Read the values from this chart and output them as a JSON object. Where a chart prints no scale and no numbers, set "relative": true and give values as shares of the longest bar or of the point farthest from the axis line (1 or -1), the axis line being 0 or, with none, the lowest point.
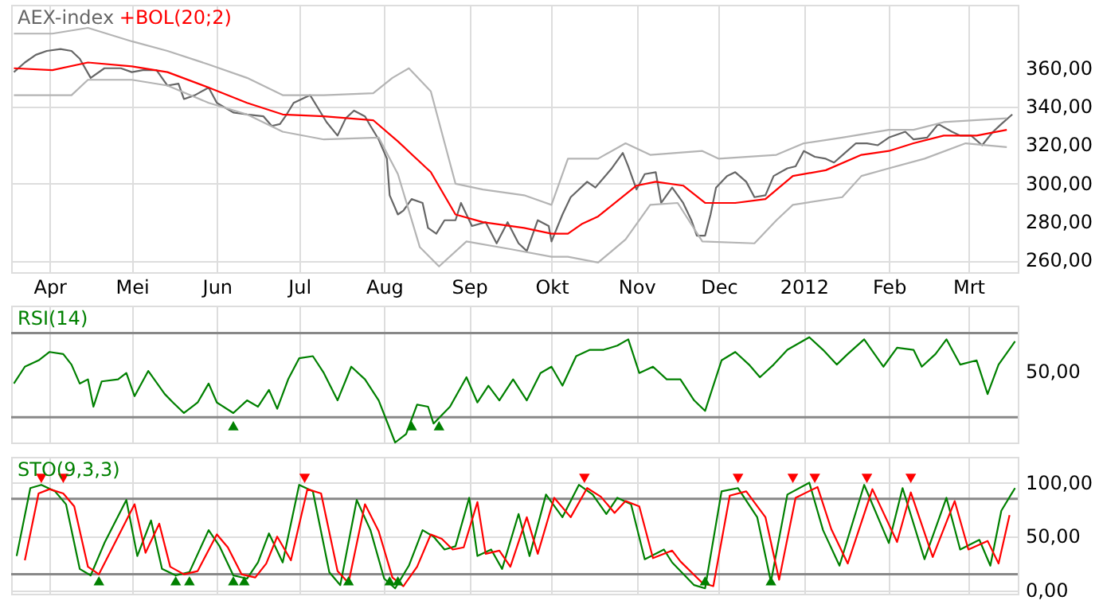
{
  "chart_data": [
    {
      "type": "line",
      "xlim": [
        "2011-03-18",
        "2012-03-19"
      ],
      "ylim": [
        254,
        393
      ],
      "xticks": [
        {
          "value": "2011-04-01",
          "label": "Apr"
        },
        {
          "value": "2011-05-01",
          "label": "Mei"
        },
        {
          "value": "2011-06-01",
          "label": "Jun"
        },
        {
          "value": "2011-07-01",
          "label": "Jul"
        },
        {
          "value": "2011-08-01",
          "label": "Aug"
        },
        {
          "value": "2011-09-01",
          "label": "Sep"
        },
        {
          "value": "2011-10-01",
          "label": "Okt"
        },
        {
          "value": "2011-11-01",
          "label": "Nov"
        },
        {
          "value": "2011-12-01",
          "label": "Dec"
        },
        {
          "value": "2012-01-01",
          "label": "2012"
        },
        {
          "value": "2012-02-01",
          "label": "Feb"
        },
        {
          "value": "2012-03-01",
          "label": "Mrt"
        }
      ],
      "yticks": [
        {
          "value": 260,
          "label": "260,00"
        },
        {
          "value": 280,
          "label": "280,00"
        },
        {
          "value": 300,
          "label": "300,00"
        },
        {
          "value": 320,
          "label": "320,00"
        },
        {
          "value": 340,
          "label": "340,00"
        },
        {
          "value": 360,
          "label": "360,00"
        }
      ],
      "grid": true,
      "legend": "top left",
      "line_style": "solid",
      "marker": "none",
      "series": [
        {
          "name": "AEX-index",
          "color": "#666666",
          "x": [
            "2011-03-19",
            "2011-03-23",
            "2011-03-27",
            "2011-03-31",
            "2011-04-05",
            "2011-04-09",
            "2011-04-12",
            "2011-04-16",
            "2011-04-21",
            "2011-04-27",
            "2011-05-01",
            "2011-05-05",
            "2011-05-10",
            "2011-05-14",
            "2011-05-18",
            "2011-05-20",
            "2011-05-24",
            "2011-05-29",
            "2011-06-01",
            "2011-06-07",
            "2011-06-12",
            "2011-06-18",
            "2011-06-21",
            "2011-06-24",
            "2011-06-26",
            "2011-06-29",
            "2011-07-05",
            "2011-07-08",
            "2011-07-11",
            "2011-07-15",
            "2011-07-18",
            "2011-07-21",
            "2011-07-25",
            "2011-07-27",
            "2011-07-30",
            "2011-08-02",
            "2011-08-03",
            "2011-08-06",
            "2011-08-08",
            "2011-08-11",
            "2011-08-15",
            "2011-08-17",
            "2011-08-20",
            "2011-08-23",
            "2011-08-27",
            "2011-08-29",
            "2011-09-02",
            "2011-09-07",
            "2011-09-11",
            "2011-09-15",
            "2011-09-19",
            "2011-09-22",
            "2011-09-26",
            "2011-09-30",
            "2011-10-01",
            "2011-10-05",
            "2011-10-08",
            "2011-10-14",
            "2011-10-17",
            "2011-10-23",
            "2011-10-27",
            "2011-10-29",
            "2011-11-01",
            "2011-11-04",
            "2011-11-08",
            "2011-11-10",
            "2011-11-14",
            "2011-11-18",
            "2011-11-21",
            "2011-11-23",
            "2011-11-26",
            "2011-11-28",
            "2011-11-30",
            "2011-12-04",
            "2011-12-07",
            "2011-12-11",
            "2011-12-14",
            "2011-12-18",
            "2011-12-21",
            "2011-12-26",
            "2011-12-29",
            "2012-01-01",
            "2012-01-05",
            "2012-01-09",
            "2012-01-12",
            "2012-01-16",
            "2012-01-20",
            "2012-01-24",
            "2012-01-28",
            "2012-02-01",
            "2012-02-07",
            "2012-02-10",
            "2012-02-15",
            "2012-02-19",
            "2012-02-24",
            "2012-02-27",
            "2012-03-02",
            "2012-03-06",
            "2012-03-10",
            "2012-03-13",
            "2012-03-17"
          ],
          "values": [
            358,
            363,
            367,
            369,
            370,
            369,
            365,
            355,
            360,
            360,
            358,
            359,
            359,
            351,
            352,
            344,
            346,
            350,
            342,
            337,
            336,
            335,
            330,
            331,
            335,
            342,
            346,
            339,
            332,
            325,
            334,
            338,
            335,
            330,
            323,
            313,
            294,
            284,
            286,
            292,
            290,
            277,
            274,
            281,
            281,
            290,
            278,
            280,
            269,
            280,
            269,
            265,
            281,
            278,
            270,
            284,
            293,
            301,
            298,
            308,
            316,
            309,
            297,
            305,
            306,
            290,
            298,
            290,
            281,
            273,
            273,
            284,
            298,
            304,
            306,
            301,
            293,
            294,
            304,
            308,
            309,
            317,
            314,
            313,
            311,
            316,
            321,
            321,
            320,
            324,
            327,
            323,
            324,
            331,
            327,
            325,
            325,
            320,
            327,
            331,
            336
          ]
        },
        {
          "name": "+BOL(20;2)",
          "color": "#ff0000",
          "x": [
            "2011-03-19",
            "2011-04-02",
            "2011-04-15",
            "2011-05-01",
            "2011-05-14",
            "2011-05-29",
            "2011-06-12",
            "2011-06-25",
            "2011-07-10",
            "2011-07-28",
            "2011-08-06",
            "2011-08-18",
            "2011-08-27",
            "2011-09-06",
            "2011-09-21",
            "2011-10-01",
            "2011-10-07",
            "2011-10-12",
            "2011-10-18",
            "2011-11-01",
            "2011-11-08",
            "2011-11-18",
            "2011-11-26",
            "2011-12-07",
            "2011-12-18",
            "2011-12-28",
            "2012-01-09",
            "2012-01-22",
            "2012-02-01",
            "2012-02-10",
            "2012-02-21",
            "2012-03-04",
            "2012-03-15"
          ],
          "values": [
            360,
            359,
            363,
            361,
            358,
            350,
            342,
            336,
            335,
            333,
            322,
            306,
            284,
            280,
            277,
            274,
            274,
            279,
            283,
            299,
            301,
            299,
            290,
            290,
            292,
            304,
            307,
            315,
            317,
            321,
            325,
            325,
            328
          ]
        },
        {
          "color": "#b4b4b4",
          "x": [
            "2011-03-19",
            "2011-04-02",
            "2011-04-15",
            "2011-05-01",
            "2011-05-14",
            "2011-05-29",
            "2011-06-12",
            "2011-06-25",
            "2011-07-10",
            "2011-07-28",
            "2011-08-04",
            "2011-08-10",
            "2011-08-18",
            "2011-08-27",
            "2011-09-06",
            "2011-09-21",
            "2011-10-01",
            "2011-10-07",
            "2011-10-18",
            "2011-10-28",
            "2011-11-06",
            "2011-11-25",
            "2011-12-01",
            "2011-12-22",
            "2012-01-01",
            "2012-01-15",
            "2012-02-01",
            "2012-02-10",
            "2012-02-21",
            "2012-03-15"
          ],
          "values": [
            378,
            378,
            381,
            374,
            369,
            362,
            355,
            346,
            346,
            347,
            355,
            360,
            348,
            300,
            297,
            294,
            289,
            313,
            313,
            321,
            315,
            317,
            313,
            315,
            321,
            324,
            328,
            328,
            332,
            334
          ]
        },
        {
          "color": "#b4b4b4",
          "x": [
            "2011-03-19",
            "2011-04-09",
            "2011-04-15",
            "2011-05-01",
            "2011-05-14",
            "2011-05-29",
            "2011-06-12",
            "2011-06-25",
            "2011-07-10",
            "2011-07-30",
            "2011-08-06",
            "2011-08-14",
            "2011-08-21",
            "2011-08-31",
            "2011-09-16",
            "2011-10-01",
            "2011-10-07",
            "2011-10-18",
            "2011-10-28",
            "2011-11-06",
            "2011-11-16",
            "2011-11-25",
            "2011-12-14",
            "2011-12-22",
            "2011-12-28",
            "2012-01-15",
            "2012-01-22",
            "2012-02-01",
            "2012-02-14",
            "2012-02-29",
            "2012-03-15"
          ],
          "values": [
            346,
            346,
            354,
            354,
            351,
            342,
            336,
            327,
            323,
            324,
            305,
            267,
            257,
            270,
            266,
            262,
            262,
            259,
            271,
            289,
            290,
            270,
            269,
            281,
            289,
            293,
            304,
            308,
            313,
            321,
            319
          ]
        }
      ]
    },
    {
      "type": "line",
      "relative": true,
      "xlim": [
        "2011-03-18",
        "2012-03-19"
      ],
      "annotations": [
        "50,00"
      ],
      "xticks": [
        {
          "value": "2011-04-01",
          "label": null
        },
        {
          "value": "2011-05-01",
          "label": null
        },
        {
          "value": "2011-06-01",
          "label": null
        },
        {
          "value": "2011-07-01",
          "label": null
        },
        {
          "value": "2011-08-01",
          "label": null
        },
        {
          "value": "2011-09-01",
          "label": null
        },
        {
          "value": "2011-10-01",
          "label": null
        },
        {
          "value": "2011-11-01",
          "label": null
        },
        {
          "value": "2011-12-01",
          "label": null
        },
        {
          "value": "2012-01-01",
          "label": null
        },
        {
          "value": "2012-02-01",
          "label": null
        },
        {
          "value": "2012-03-01",
          "label": null
        }
      ],
      "grid": "x",
      "legend": "top left",
      "tick_labels": "y",
      "line_style": "solid",
      "ref_lines": [
        {
          "axis": "y",
          "value": 1.04,
          "color": "#888888"
        },
        {
          "axis": "y",
          "value": 0.24,
          "color": "#888888"
        }
      ],
      "series": [
        {
          "name": "RSI(14)",
          "color": "#008000",
          "marker": "none",
          "x": [
            "2011-03-19",
            "2011-03-23",
            "2011-03-28",
            "2011-04-01",
            "2011-04-06",
            "2011-04-09",
            "2011-04-12",
            "2011-04-15",
            "2011-04-17",
            "2011-04-20",
            "2011-04-26",
            "2011-04-29",
            "2011-05-02",
            "2011-05-07",
            "2011-05-13",
            "2011-05-16",
            "2011-05-20",
            "2011-05-25",
            "2011-05-29",
            "2011-06-01",
            "2011-06-07",
            "2011-06-12",
            "2011-06-16",
            "2011-06-20",
            "2011-06-23",
            "2011-06-27",
            "2011-07-01",
            "2011-07-06",
            "2011-07-10",
            "2011-07-15",
            "2011-07-20",
            "2011-07-25",
            "2011-07-30",
            "2011-08-05",
            "2011-08-09",
            "2011-08-13",
            "2011-08-17",
            "2011-08-19",
            "2011-08-25",
            "2011-08-31",
            "2011-09-04",
            "2011-09-08",
            "2011-09-12",
            "2011-09-17",
            "2011-09-22",
            "2011-09-27",
            "2011-10-01",
            "2011-10-05",
            "2011-10-10",
            "2011-10-15",
            "2011-10-20",
            "2011-10-25",
            "2011-10-29",
            "2011-11-02",
            "2011-11-07",
            "2011-11-12",
            "2011-11-17",
            "2011-11-22",
            "2011-11-26",
            "2011-12-02",
            "2011-12-07",
            "2011-12-12",
            "2011-12-16",
            "2011-12-21",
            "2011-12-26",
            "2012-01-03",
            "2012-01-08",
            "2012-01-13",
            "2012-01-17",
            "2012-01-23",
            "2012-01-30",
            "2012-02-04",
            "2012-02-10",
            "2012-02-13",
            "2012-02-18",
            "2012-02-22",
            "2012-02-27",
            "2012-03-04",
            "2012-03-08",
            "2012-03-12",
            "2012-03-18"
          ],
          "values": [
            0.56,
            0.72,
            0.78,
            0.86,
            0.84,
            0.74,
            0.56,
            0.6,
            0.34,
            0.58,
            0.6,
            0.66,
            0.44,
            0.68,
            0.46,
            0.38,
            0.28,
            0.38,
            0.56,
            0.38,
            0.28,
            0.4,
            0.34,
            0.5,
            0.32,
            0.6,
            0.8,
            0.82,
            0.66,
            0.4,
            0.72,
            0.6,
            0.4,
            0,
            0.08,
            0.36,
            0.34,
            0.18,
            0.34,
            0.62,
            0.38,
            0.54,
            0.4,
            0.6,
            0.4,
            0.66,
            0.72,
            0.54,
            0.82,
            0.88,
            0.88,
            0.92,
            0.98,
            0.66,
            0.72,
            0.6,
            0.6,
            0.4,
            0.3,
            0.78,
            0.86,
            0.74,
            0.62,
            0.74,
            0.88,
            1,
            0.88,
            0.74,
            0.84,
            0.98,
            0.72,
            0.9,
            0.88,
            0.72,
            0.84,
            0.98,
            0.74,
            0.78,
            0.46,
            0.74,
            0.96
          ]
        },
        {
          "type": "scatter",
          "marker": "triangle",
          "color": "#008000",
          "x": [
            "2011-06-07",
            "2011-08-11",
            "2011-08-21"
          ],
          "values": [
            0.16,
            0.16,
            0.16
          ]
        }
      ]
    },
    {
      "type": "line",
      "xlim": [
        "2011-03-18",
        "2012-03-19"
      ],
      "ylim": [
        -3,
        124
      ],
      "xticks": [
        {
          "value": "2011-04-01",
          "label": null
        },
        {
          "value": "2011-05-01",
          "label": null
        },
        {
          "value": "2011-06-01",
          "label": null
        },
        {
          "value": "2011-07-01",
          "label": null
        },
        {
          "value": "2011-08-01",
          "label": null
        },
        {
          "value": "2011-09-01",
          "label": null
        },
        {
          "value": "2011-10-01",
          "label": null
        },
        {
          "value": "2011-11-01",
          "label": null
        },
        {
          "value": "2011-12-01",
          "label": null
        },
        {
          "value": "2012-01-01",
          "label": null
        },
        {
          "value": "2012-02-01",
          "label": null
        },
        {
          "value": "2012-03-01",
          "label": null
        }
      ],
      "yticks": [
        {
          "value": 0,
          "label": "0,00"
        },
        {
          "value": 50,
          "label": "50,00"
        },
        {
          "value": 100,
          "label": "100,00"
        }
      ],
      "grid": true,
      "legend": "top left",
      "tick_labels": "y",
      "line_style": "solid",
      "ref_lines": [
        {
          "axis": "y",
          "value": 85,
          "color": "#888888"
        },
        {
          "axis": "y",
          "value": 15,
          "color": "#888888"
        }
      ],
      "series": [
        {
          "name": "STO(9,3,3)",
          "color": "#008000",
          "marker": "none",
          "x": [
            "2011-03-20",
            "2011-03-25",
            "2011-03-29",
            "2011-04-03",
            "2011-04-07",
            "2011-04-12",
            "2011-04-16",
            "2011-04-21",
            "2011-04-29",
            "2011-05-03",
            "2011-05-08",
            "2011-05-12",
            "2011-05-17",
            "2011-05-22",
            "2011-05-29",
            "2011-06-02",
            "2011-06-07",
            "2011-06-12",
            "2011-06-16",
            "2011-06-20",
            "2011-06-25",
            "2011-07-01",
            "2011-07-06",
            "2011-07-12",
            "2011-07-16",
            "2011-07-22",
            "2011-07-27",
            "2011-08-01",
            "2011-08-05",
            "2011-08-10",
            "2011-08-15",
            "2011-08-19",
            "2011-08-23",
            "2011-08-27",
            "2011-09-01",
            "2011-09-04",
            "2011-09-09",
            "2011-09-13",
            "2011-09-19",
            "2011-09-23",
            "2011-09-29",
            "2011-10-05",
            "2011-10-11",
            "2011-10-16",
            "2011-10-21",
            "2011-10-25",
            "2011-10-30",
            "2011-11-04",
            "2011-11-11",
            "2011-11-14",
            "2011-11-22",
            "2011-11-26",
            "2011-12-02",
            "2011-12-08",
            "2011-12-15",
            "2011-12-20",
            "2011-12-26",
            "2012-01-03",
            "2012-01-08",
            "2012-01-14",
            "2012-01-23",
            "2012-02-01",
            "2012-02-06",
            "2012-02-14",
            "2012-02-22",
            "2012-02-27",
            "2012-03-05",
            "2012-03-09",
            "2012-03-13",
            "2012-03-18"
          ],
          "values": [
            32,
            95,
            98,
            92,
            80,
            20,
            14,
            44,
            84,
            32,
            65,
            20,
            14,
            17,
            56,
            41,
            14,
            11,
            26,
            53,
            26,
            98,
            92,
            17,
            5,
            84,
            56,
            11,
            2,
            23,
            56,
            50,
            38,
            41,
            86,
            32,
            38,
            20,
            71,
            32,
            89,
            68,
            98,
            89,
            71,
            86,
            80,
            29,
            38,
            26,
            5,
            2,
            92,
            95,
            68,
            8,
            89,
            100,
            56,
            23,
            98,
            44,
            95,
            29,
            86,
            38,
            47,
            23,
            74,
            95
          ]
        },
        {
          "color": "#ff0000",
          "marker": "none",
          "x": [
            "2011-03-23",
            "2011-03-28",
            "2011-04-01",
            "2011-04-06",
            "2011-04-10",
            "2011-04-15",
            "2011-04-19",
            "2011-04-24",
            "2011-05-02",
            "2011-05-06",
            "2011-05-11",
            "2011-05-15",
            "2011-05-20",
            "2011-05-25",
            "2011-06-01",
            "2011-06-05",
            "2011-06-10",
            "2011-06-15",
            "2011-06-19",
            "2011-06-23",
            "2011-06-28",
            "2011-07-04",
            "2011-07-09",
            "2011-07-15",
            "2011-07-19",
            "2011-07-25",
            "2011-07-30",
            "2011-08-04",
            "2011-08-08",
            "2011-08-13",
            "2011-08-18",
            "2011-08-22",
            "2011-08-26",
            "2011-08-30",
            "2011-09-04",
            "2011-09-07",
            "2011-09-12",
            "2011-09-16",
            "2011-09-22",
            "2011-09-26",
            "2011-10-02",
            "2011-10-08",
            "2011-10-14",
            "2011-10-19",
            "2011-10-24",
            "2011-10-28",
            "2011-11-02",
            "2011-11-07",
            "2011-11-14",
            "2011-11-17",
            "2011-11-25",
            "2011-11-29",
            "2011-12-05",
            "2011-12-11",
            "2011-12-18",
            "2011-12-23",
            "2011-12-29",
            "2012-01-06",
            "2012-01-11",
            "2012-01-17",
            "2012-01-26",
            "2012-02-04",
            "2012-02-09",
            "2012-02-17",
            "2012-02-25",
            "2012-03-01",
            "2012-03-08",
            "2012-03-12",
            "2012-03-16"
          ],
          "values": [
            28,
            90,
            94,
            90,
            78,
            22,
            15,
            40,
            80,
            35,
            62,
            22,
            15,
            18,
            52,
            40,
            15,
            12,
            25,
            50,
            28,
            94,
            90,
            18,
            7,
            80,
            55,
            12,
            4,
            22,
            52,
            48,
            38,
            40,
            82,
            34,
            37,
            22,
            68,
            34,
            86,
            68,
            95,
            87,
            72,
            83,
            78,
            30,
            37,
            27,
            7,
            4,
            88,
            92,
            68,
            10,
            86,
            96,
            57,
            25,
            94,
            45,
            91,
            31,
            83,
            38,
            46,
            25,
            70
          ]
        },
        {
          "type": "scatter",
          "marker": "triangle",
          "color": "#008000",
          "x": [
            "2011-04-19",
            "2011-05-17",
            "2011-05-22",
            "2011-06-07",
            "2011-06-11",
            "2011-07-19",
            "2011-08-03",
            "2011-08-06",
            "2011-11-26",
            "2011-12-20"
          ],
          "values": [
            9,
            9,
            9,
            9,
            9,
            9,
            9,
            9,
            9,
            9
          ]
        },
        {
          "type": "scatter",
          "marker": "triangle-down",
          "color": "#ff0000",
          "x": [
            "2011-03-29",
            "2011-04-06",
            "2011-07-03",
            "2011-10-13",
            "2011-12-08",
            "2011-12-28",
            "2012-01-05",
            "2012-01-24",
            "2012-02-09"
          ],
          "values": [
            104,
            104,
            104,
            104,
            104,
            104,
            104,
            104,
            104
          ]
        }
      ]
    }
  ]
}
